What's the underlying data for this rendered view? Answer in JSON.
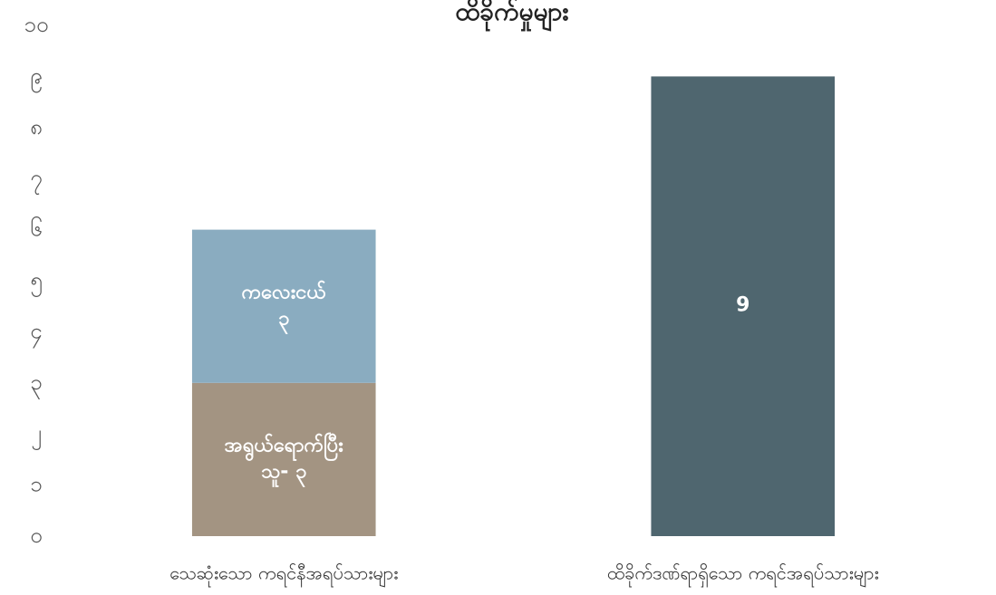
{
  "chart_data": {
    "type": "stacked_bar",
    "title": "ထိခိုက်မှုများ",
    "categories": [
      "သေဆုံးသော ကရင်နီအရပ်သားများ",
      "ထိခိုက်ဒဏ်ရာရှိသော ကရင်အရပ်သားများ"
    ],
    "series": [
      {
        "color": "#a39482",
        "values": [
          3,
          null
        ],
        "value_labels": [
          "အရွယ်ရောက်ပြီး\nသူ- ၃",
          null
        ]
      },
      {
        "color": "#8aacc0",
        "values": [
          3,
          null
        ],
        "value_labels": [
          "ကလေးငယ်\n၃",
          null
        ]
      },
      {
        "color": "#4f666f",
        "values": [
          null,
          9
        ]
      }
    ],
    "ylim": [
      0,
      10
    ],
    "yticks": [
      {
        "value": 0,
        "label": "၀"
      },
      {
        "value": 1,
        "label": "၁"
      },
      {
        "value": 2,
        "label": "၂"
      },
      {
        "value": 3,
        "label": "၃"
      },
      {
        "value": 4,
        "label": "၄"
      },
      {
        "value": 5,
        "label": "၅"
      },
      {
        "value": 6,
        "label": "၆"
      },
      {
        "value": 7,
        "label": "၇"
      },
      {
        "value": 8,
        "label": "၈"
      },
      {
        "value": 9,
        "label": "၉"
      },
      {
        "value": 10,
        "label": "၁၀"
      }
    ],
    "grid": false
  }
}
